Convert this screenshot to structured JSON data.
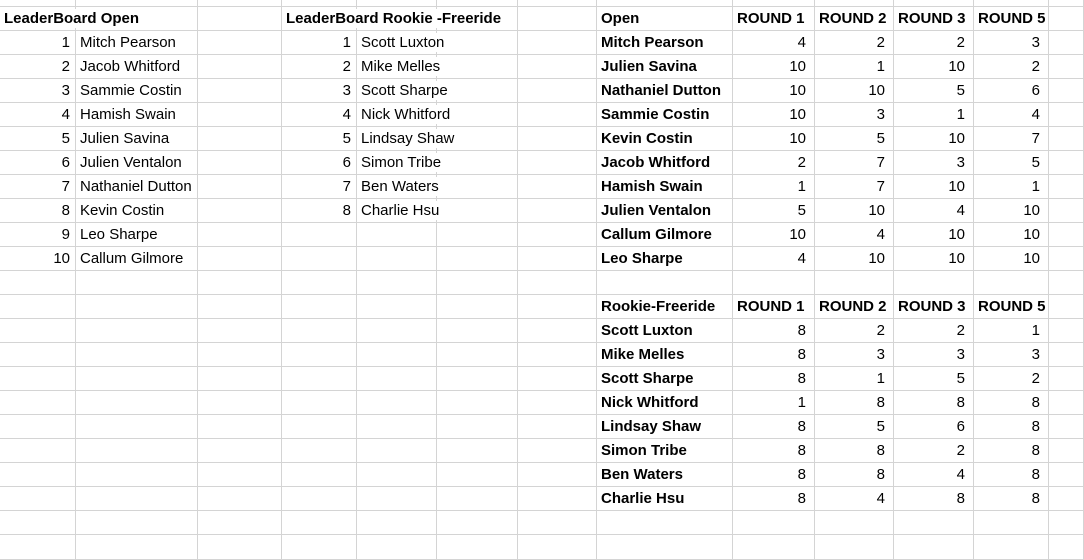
{
  "app": {
    "kind": "spreadsheet"
  },
  "colors": {
    "background": "#ffffff",
    "gridline": "#d4d4d4",
    "text": "#000000"
  },
  "leaderboard_open": {
    "title": "LeaderBoard Open",
    "entries": [
      {
        "rank": 1,
        "name": "Mitch Pearson"
      },
      {
        "rank": 2,
        "name": "Jacob Whitford"
      },
      {
        "rank": 3,
        "name": "Sammie Costin"
      },
      {
        "rank": 4,
        "name": "Hamish Swain"
      },
      {
        "rank": 5,
        "name": "Julien Savina"
      },
      {
        "rank": 6,
        "name": "Julien Ventalon"
      },
      {
        "rank": 7,
        "name": "Nathaniel Dutton"
      },
      {
        "rank": 8,
        "name": "Kevin Costin"
      },
      {
        "rank": 9,
        "name": "Leo Sharpe"
      },
      {
        "rank": 10,
        "name": "Callum Gilmore"
      }
    ]
  },
  "leaderboard_rookie": {
    "title": "LeaderBoard Rookie -Freeride",
    "entries": [
      {
        "rank": 1,
        "name": "Scott Luxton"
      },
      {
        "rank": 2,
        "name": "Mike Melles"
      },
      {
        "rank": 3,
        "name": "Scott Sharpe"
      },
      {
        "rank": 4,
        "name": "Nick Whitford"
      },
      {
        "rank": 5,
        "name": "Lindsay Shaw"
      },
      {
        "rank": 6,
        "name": "Simon Tribe"
      },
      {
        "rank": 7,
        "name": "Ben Waters"
      },
      {
        "rank": 8,
        "name": "Charlie Hsu"
      }
    ]
  },
  "open_table": {
    "title": "Open",
    "round_headers": [
      "ROUND 1",
      "ROUND 2",
      "ROUND 3",
      "ROUND 5"
    ],
    "rows": [
      {
        "name": "Mitch Pearson",
        "scores": [
          4,
          2,
          2,
          3
        ]
      },
      {
        "name": "Julien Savina",
        "scores": [
          10,
          1,
          10,
          2
        ]
      },
      {
        "name": "Nathaniel Dutton",
        "scores": [
          10,
          10,
          5,
          6
        ]
      },
      {
        "name": "Sammie Costin",
        "scores": [
          10,
          3,
          1,
          4
        ]
      },
      {
        "name": "Kevin Costin",
        "scores": [
          10,
          5,
          10,
          7
        ]
      },
      {
        "name": "Jacob Whitford",
        "scores": [
          2,
          7,
          3,
          5
        ]
      },
      {
        "name": "Hamish Swain",
        "scores": [
          1,
          7,
          10,
          1
        ]
      },
      {
        "name": "Julien Ventalon",
        "scores": [
          5,
          10,
          4,
          10
        ]
      },
      {
        "name": "Callum Gilmore",
        "scores": [
          10,
          4,
          10,
          10
        ]
      },
      {
        "name": "Leo Sharpe",
        "scores": [
          4,
          10,
          10,
          10
        ]
      }
    ]
  },
  "rookie_table": {
    "title": "Rookie-Freeride",
    "round_headers": [
      "ROUND 1",
      "ROUND 2",
      "ROUND 3",
      "ROUND 5"
    ],
    "rows": [
      {
        "name": "Scott Luxton",
        "scores": [
          8,
          2,
          2,
          1
        ]
      },
      {
        "name": "Mike Melles",
        "scores": [
          8,
          3,
          3,
          3
        ]
      },
      {
        "name": "Scott Sharpe",
        "scores": [
          8,
          1,
          5,
          2
        ]
      },
      {
        "name": "Nick Whitford",
        "scores": [
          1,
          8,
          8,
          8
        ]
      },
      {
        "name": "Lindsay Shaw",
        "scores": [
          8,
          5,
          6,
          8
        ]
      },
      {
        "name": "Simon Tribe",
        "scores": [
          8,
          8,
          2,
          8
        ]
      },
      {
        "name": "Ben Waters",
        "scores": [
          8,
          8,
          4,
          8
        ]
      },
      {
        "name": "Charlie Hsu",
        "scores": [
          8,
          4,
          8,
          8
        ]
      }
    ]
  }
}
